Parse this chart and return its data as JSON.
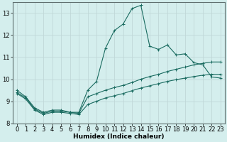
{
  "xlabel": "Humidex (Indice chaleur)",
  "bg_color": "#d4eeed",
  "grid_color": "#c0d8d8",
  "line_color": "#1a6b60",
  "xlim": [
    -0.5,
    23.5
  ],
  "ylim": [
    8,
    13.5
  ],
  "yticks": [
    8,
    9,
    10,
    11,
    12,
    13
  ],
  "xticks": [
    0,
    1,
    2,
    3,
    4,
    5,
    6,
    7,
    8,
    9,
    10,
    11,
    12,
    13,
    14,
    15,
    16,
    17,
    18,
    19,
    20,
    21,
    22,
    23
  ],
  "line1_x": [
    0,
    1,
    2,
    3,
    4,
    5,
    6,
    7,
    8,
    9,
    10,
    11,
    12,
    13,
    14,
    15,
    16,
    17,
    18,
    19,
    20,
    21,
    22,
    23
  ],
  "line1_y": [
    9.5,
    9.2,
    8.7,
    8.5,
    8.6,
    8.6,
    8.5,
    8.5,
    9.5,
    9.9,
    11.4,
    12.2,
    12.5,
    13.2,
    13.35,
    11.5,
    11.35,
    11.55,
    11.1,
    11.15,
    10.75,
    10.65,
    10.1,
    10.05
  ],
  "line2_x": [
    0,
    1,
    2,
    3,
    4,
    5,
    6,
    7,
    8,
    9,
    10,
    11,
    12,
    13,
    14,
    15,
    16,
    17,
    18,
    19,
    20,
    21,
    22,
    23
  ],
  "line2_y": [
    9.4,
    9.15,
    8.65,
    8.45,
    8.55,
    8.55,
    8.5,
    8.45,
    9.2,
    9.35,
    9.5,
    9.62,
    9.72,
    9.85,
    10.0,
    10.12,
    10.22,
    10.35,
    10.45,
    10.55,
    10.65,
    10.72,
    10.78,
    10.78
  ],
  "line3_x": [
    0,
    1,
    2,
    3,
    4,
    5,
    6,
    7,
    8,
    9,
    10,
    11,
    12,
    13,
    14,
    15,
    16,
    17,
    18,
    19,
    20,
    21,
    22,
    23
  ],
  "line3_y": [
    9.35,
    9.1,
    8.6,
    8.4,
    8.5,
    8.5,
    8.45,
    8.4,
    8.85,
    9.0,
    9.15,
    9.25,
    9.35,
    9.48,
    9.6,
    9.7,
    9.8,
    9.9,
    9.98,
    10.05,
    10.12,
    10.18,
    10.22,
    10.22
  ],
  "xlabel_fontsize": 6.5,
  "tick_fontsize": 6
}
